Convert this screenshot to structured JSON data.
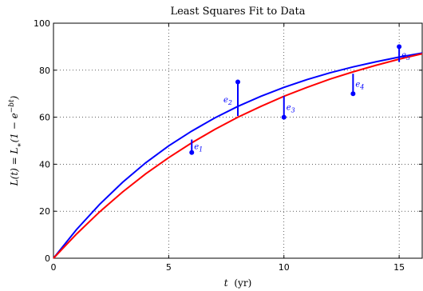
{
  "chart_data": {
    "type": "line",
    "title": "Least Squares Fit to Data",
    "xlabel": "t (yr)",
    "xlabel_var": "t",
    "xlabel_unit": "(yr)",
    "ylabel": "L(t) = L∗(1 − e^{−bt})",
    "xlim": [
      0,
      16
    ],
    "ylim": [
      0,
      100
    ],
    "xticks": [
      0,
      5,
      10,
      15
    ],
    "yticks": [
      0,
      20,
      40,
      60,
      80,
      100
    ],
    "grid": true,
    "series": [
      {
        "color": "#0000ff",
        "x": [
          0,
          1,
          2,
          3,
          4,
          5,
          6,
          7,
          8,
          9,
          10,
          11,
          12,
          13,
          14,
          15,
          16
        ],
        "y": [
          0,
          12.2,
          22.9,
          32.3,
          40.6,
          47.8,
          54.1,
          59.7,
          64.6,
          68.9,
          72.7,
          76.0,
          78.9,
          81.4,
          83.6,
          85.6,
          87.3
        ]
      },
      {
        "color": "#ff0000",
        "x": [
          0,
          1,
          2,
          3,
          4,
          5,
          6,
          7,
          8,
          9,
          10,
          11,
          12,
          13,
          14,
          15,
          16
        ],
        "y": [
          0,
          10.3,
          19.7,
          28.2,
          35.9,
          42.8,
          49.1,
          54.8,
          60.0,
          64.6,
          68.9,
          72.7,
          76.2,
          79.3,
          82.1,
          84.7,
          87.0
        ]
      }
    ],
    "points": {
      "color": "#0000ff",
      "x": [
        6,
        8,
        10,
        13,
        15
      ],
      "y": [
        45,
        75,
        60,
        70,
        90
      ]
    },
    "residuals": [
      {
        "label": "e1",
        "x": 6,
        "y_from": 45,
        "y_to": 50.5
      },
      {
        "label": "e2",
        "x": 8,
        "y_from": 75,
        "y_to": 60.5
      },
      {
        "label": "e3",
        "x": 10,
        "y_from": 60,
        "y_to": 69
      },
      {
        "label": "e4",
        "x": 13,
        "y_from": 70,
        "y_to": 78.5
      },
      {
        "label": "e5",
        "x": 15,
        "y_from": 90,
        "y_to": 83.5
      }
    ]
  }
}
